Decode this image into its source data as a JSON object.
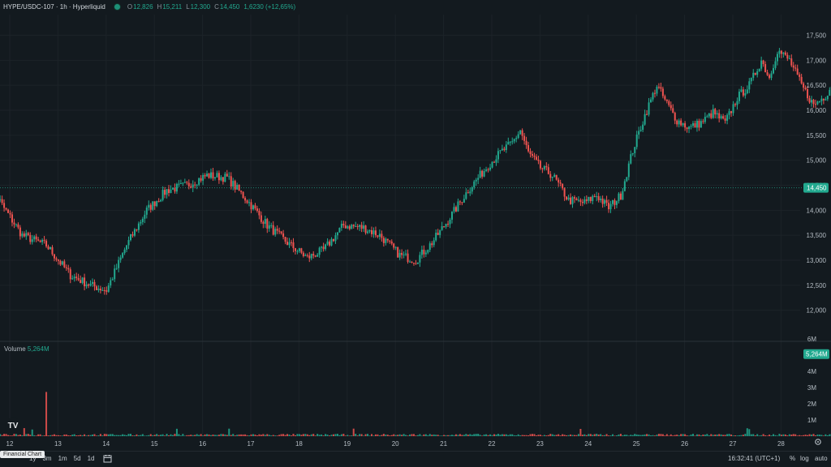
{
  "header": {
    "symbol": "HYPE/USDC-107 · 1h · Hyperliquid",
    "o_label": "O",
    "o_value": "12,826",
    "h_label": "H",
    "h_value": "15,211",
    "l_label": "L",
    "l_value": "12,300",
    "c_label": "C",
    "c_value": "14,450",
    "change": "1,6230 (+12,65%)",
    "status_color": "#1d8f77"
  },
  "volume_legend": {
    "label": "Volume",
    "value": "5,264M"
  },
  "bottom_bar": {
    "ranges": [
      "1y",
      "3m",
      "1m",
      "5d",
      "1d"
    ],
    "tooltip": "Financial Chart",
    "clock": "16:32:41 (UTC+1)",
    "percent": "%",
    "log": "log",
    "auto": "auto",
    "auto_color": "#22a98f"
  },
  "colors": {
    "up": "#22a98f",
    "down": "#ef5350",
    "background": "#131a1f"
  },
  "chart_data": {
    "type": "candlestick",
    "timeframe": "1h",
    "price_axis": {
      "ticks": [
        "17,500",
        "17,000",
        "16,500",
        "16,000",
        "15,500",
        "15,000",
        "14,500",
        "14,000",
        "13,500",
        "13,000",
        "12,500",
        "12,000"
      ],
      "range": [
        11800,
        17800
      ]
    },
    "last_price_label": "14,450",
    "volume_axis": {
      "ticks": [
        "6M",
        "5M",
        "4M",
        "3M",
        "2M",
        "1M"
      ],
      "range": [
        0,
        6200000
      ]
    },
    "last_volume_label": "5,264M",
    "x_labels": [
      "12",
      "13",
      "14",
      "15",
      "16",
      "17",
      "18",
      "19",
      "20",
      "21",
      "22",
      "23",
      "24",
      "25",
      "26",
      "27",
      "28"
    ],
    "anchors": [
      [
        0,
        14700
      ],
      [
        8,
        14100
      ],
      [
        18,
        13500
      ],
      [
        30,
        13300
      ],
      [
        42,
        12700
      ],
      [
        52,
        12500
      ],
      [
        60,
        12400
      ],
      [
        70,
        13300
      ],
      [
        80,
        14000
      ],
      [
        90,
        14400
      ],
      [
        100,
        14500
      ],
      [
        110,
        14700
      ],
      [
        120,
        14650
      ],
      [
        130,
        14200
      ],
      [
        140,
        13700
      ],
      [
        150,
        13350
      ],
      [
        160,
        13050
      ],
      [
        168,
        13200
      ],
      [
        178,
        13700
      ],
      [
        188,
        13650
      ],
      [
        196,
        13500
      ],
      [
        206,
        13100
      ],
      [
        214,
        13000
      ],
      [
        222,
        13350
      ],
      [
        230,
        13800
      ],
      [
        240,
        14400
      ],
      [
        250,
        14900
      ],
      [
        256,
        15150
      ],
      [
        262,
        15350
      ],
      [
        266,
        15600
      ],
      [
        270,
        15150
      ],
      [
        276,
        14850
      ],
      [
        282,
        14700
      ],
      [
        290,
        14200
      ],
      [
        298,
        14150
      ],
      [
        304,
        14300
      ],
      [
        310,
        14050
      ],
      [
        316,
        14300
      ],
      [
        322,
        15200
      ],
      [
        328,
        15900
      ],
      [
        334,
        16500
      ],
      [
        338,
        16200
      ],
      [
        344,
        15800
      ],
      [
        350,
        15650
      ],
      [
        356,
        15750
      ],
      [
        362,
        15950
      ],
      [
        368,
        15750
      ],
      [
        374,
        16250
      ],
      [
        380,
        16500
      ],
      [
        386,
        17000
      ],
      [
        390,
        16650
      ],
      [
        394,
        17200
      ],
      [
        400,
        17000
      ],
      [
        406,
        16500
      ],
      [
        412,
        16100
      ],
      [
        418,
        16300
      ],
      [
        424,
        16700
      ],
      [
        430,
        16300
      ],
      [
        436,
        16050
      ],
      [
        442,
        15900
      ],
      [
        446,
        16150
      ],
      [
        450,
        16050
      ],
      [
        452,
        14650
      ]
    ],
    "spike_volumes_m": [
      3.0,
      5.264
    ],
    "final_candle": {
      "open": 12826,
      "high": 15211,
      "low": 12300,
      "close": 14450
    }
  }
}
